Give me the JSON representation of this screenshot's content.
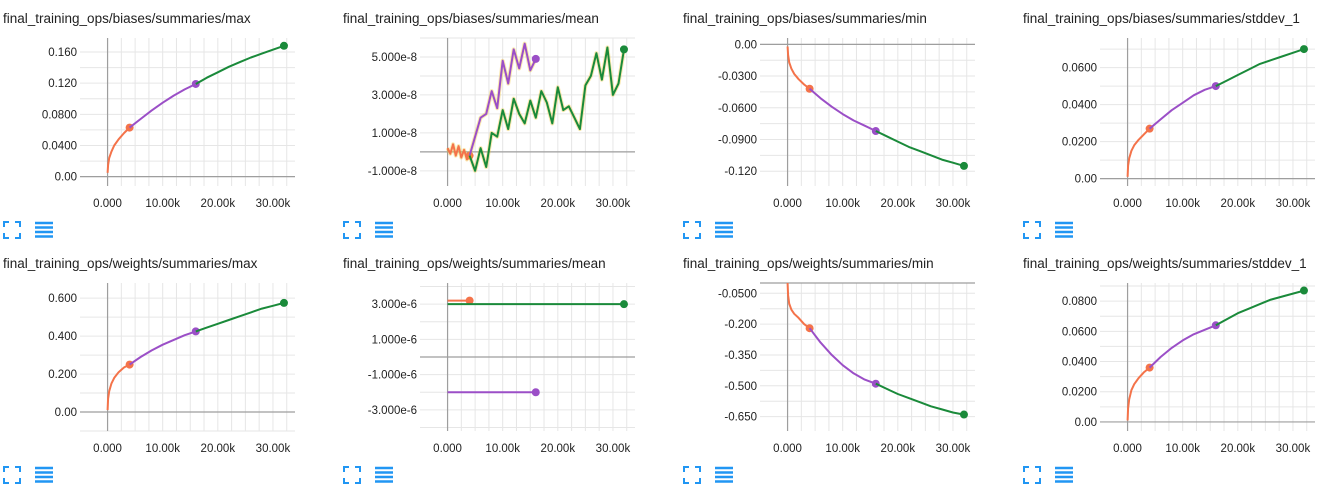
{
  "colors": {
    "orange": "#f4734a",
    "purple": "#9b4fc7",
    "green": "#1a8a3a",
    "yellow": "#f0c020",
    "axis": "#9e9e9e",
    "grid": "#e6e6e6",
    "icon": "#2196f3"
  },
  "icons": {
    "expand": "fullscreen-expand-icon",
    "data": "list-lines-icon"
  },
  "chart_data": [
    {
      "type": "line",
      "title": "final_training_ops/biases/summaries/max",
      "x_ticks": [
        "0.000",
        "10.00k",
        "20.00k",
        "30.00k"
      ],
      "y_ticks": [
        "0.00",
        "0.0400",
        "0.0800",
        "0.120",
        "0.160"
      ],
      "xlim": [
        -5000,
        34000
      ],
      "ylim": [
        -0.012,
        0.178
      ],
      "series": [
        {
          "x": [
            0,
            100,
            300,
            700,
            1200,
            2000,
            3000,
            4000
          ],
          "y": [
            0.005,
            0.015,
            0.024,
            0.032,
            0.04,
            0.048,
            0.056,
            0.063
          ]
        },
        {
          "x": [
            4000,
            6000,
            8000,
            10000,
            12000,
            14000,
            16000
          ],
          "y": [
            0.063,
            0.074,
            0.085,
            0.095,
            0.104,
            0.112,
            0.119
          ]
        },
        {
          "x": [
            16000,
            18000,
            20000,
            22000,
            24000,
            26000,
            28000,
            30000,
            32000
          ],
          "y": [
            0.119,
            0.127,
            0.134,
            0.141,
            0.147,
            0.153,
            0.158,
            0.163,
            0.168
          ]
        }
      ]
    },
    {
      "type": "line",
      "title": "final_training_ops/biases/summaries/mean",
      "x_ticks": [
        "0.000",
        "10.00k",
        "20.00k",
        "30.00k"
      ],
      "y_ticks": [
        "-1.000e-8",
        "1.000e-8",
        "3.000e-8",
        "5.000e-8"
      ],
      "xlim": [
        -5000,
        34000
      ],
      "ylim": [
        -1.8e-08,
        6e-08
      ],
      "series": [
        {
          "x": [
            0,
            500,
            1000,
            1500,
            2000,
            2500,
            3000,
            3500,
            4000
          ],
          "y": [
            2e-09,
            -1e-09,
            4e-09,
            -2e-09,
            3e-09,
            -3e-09,
            1e-09,
            -4e-09,
            -2e-09
          ]
        },
        {
          "x": [
            4000,
            5000,
            6000,
            7000,
            8000,
            9000,
            10000,
            11000,
            12000,
            13000,
            14000,
            15000,
            16000
          ],
          "y": [
            -2e-09,
            8e-09,
            1.8e-08,
            2e-08,
            3.2e-08,
            2.3e-08,
            4.8e-08,
            3.6e-08,
            5.4e-08,
            4.4e-08,
            5.7e-08,
            4.3e-08,
            4.9e-08
          ]
        },
        {
          "x": [
            4000,
            5000,
            6000,
            7000,
            8000,
            9000,
            10000,
            11000,
            12000,
            13000,
            14000,
            15000,
            16000,
            17000,
            18000,
            19000,
            20000,
            21000,
            22000,
            23000,
            24000,
            25000,
            26000,
            27000,
            28000,
            29000,
            30000,
            31000,
            32000
          ],
          "y": [
            -2e-09,
            -1e-08,
            2e-09,
            -8e-09,
            1e-08,
            8e-09,
            2.2e-08,
            1.2e-08,
            2.8e-08,
            2e-08,
            1.5e-08,
            2.7e-08,
            1.8e-08,
            3.2e-08,
            2.6e-08,
            1.5e-08,
            3.4e-08,
            2.2e-08,
            2.4e-08,
            1.8e-08,
            1.2e-08,
            3.5e-08,
            4e-08,
            5.2e-08,
            3.8e-08,
            5.5e-08,
            3e-08,
            3.6e-08,
            5.4e-08
          ]
        }
      ]
    },
    {
      "type": "line",
      "title": "final_training_ops/biases/summaries/min",
      "x_ticks": [
        "0.000",
        "10.00k",
        "20.00k",
        "30.00k"
      ],
      "y_ticks": [
        "0.00",
        "-0.0300",
        "-0.0600",
        "-0.0900",
        "-0.120"
      ],
      "xlim": [
        -5000,
        34000
      ],
      "ylim": [
        -0.134,
        0.006
      ],
      "series": [
        {
          "x": [
            0,
            100,
            300,
            700,
            1200,
            2000,
            3000,
            4000
          ],
          "y": [
            -0.002,
            -0.01,
            -0.017,
            -0.023,
            -0.028,
            -0.033,
            -0.038,
            -0.042
          ]
        },
        {
          "x": [
            4000,
            6000,
            8000,
            10000,
            12000,
            14000,
            16000
          ],
          "y": [
            -0.042,
            -0.051,
            -0.059,
            -0.066,
            -0.072,
            -0.077,
            -0.082
          ]
        },
        {
          "x": [
            16000,
            18000,
            20000,
            22000,
            24000,
            26000,
            28000,
            30000,
            32000
          ],
          "y": [
            -0.082,
            -0.087,
            -0.092,
            -0.097,
            -0.101,
            -0.105,
            -0.109,
            -0.112,
            -0.115
          ]
        }
      ]
    },
    {
      "type": "line",
      "title": "final_training_ops/biases/summaries/stddev_1",
      "x_ticks": [
        "0.000",
        "10.00k",
        "20.00k",
        "30.00k"
      ],
      "y_ticks": [
        "0.00",
        "0.0200",
        "0.0400",
        "0.0600"
      ],
      "xlim": [
        -5000,
        34000
      ],
      "ylim": [
        -0.004,
        0.076
      ],
      "series": [
        {
          "x": [
            0,
            100,
            300,
            700,
            1200,
            2000,
            3000,
            4000
          ],
          "y": [
            0.001,
            0.007,
            0.011,
            0.015,
            0.018,
            0.021,
            0.024,
            0.027
          ]
        },
        {
          "x": [
            4000,
            6000,
            8000,
            10000,
            12000,
            14000,
            16000
          ],
          "y": [
            0.027,
            0.032,
            0.037,
            0.041,
            0.045,
            0.048,
            0.05
          ]
        },
        {
          "x": [
            16000,
            18000,
            20000,
            22000,
            24000,
            26000,
            28000,
            30000,
            32000
          ],
          "y": [
            0.05,
            0.053,
            0.056,
            0.059,
            0.062,
            0.064,
            0.066,
            0.068,
            0.07
          ]
        }
      ]
    },
    {
      "type": "line",
      "title": "final_training_ops/weights/summaries/max",
      "x_ticks": [
        "0.000",
        "10.00k",
        "20.00k",
        "30.00k"
      ],
      "y_ticks": [
        "0.00",
        "0.200",
        "0.400",
        "0.600"
      ],
      "xlim": [
        -5000,
        34000
      ],
      "ylim": [
        -0.1,
        0.68
      ],
      "series": [
        {
          "x": [
            0,
            100,
            300,
            700,
            1200,
            2000,
            3000,
            4000
          ],
          "y": [
            0.01,
            0.07,
            0.11,
            0.15,
            0.18,
            0.21,
            0.235,
            0.25
          ]
        },
        {
          "x": [
            4000,
            6000,
            8000,
            10000,
            12000,
            14000,
            16000
          ],
          "y": [
            0.25,
            0.29,
            0.325,
            0.355,
            0.38,
            0.405,
            0.425
          ]
        },
        {
          "x": [
            16000,
            18000,
            20000,
            22000,
            24000,
            26000,
            28000,
            30000,
            32000
          ],
          "y": [
            0.425,
            0.445,
            0.465,
            0.485,
            0.505,
            0.525,
            0.545,
            0.56,
            0.575
          ]
        }
      ]
    },
    {
      "type": "line",
      "title": "final_training_ops/weights/summaries/mean",
      "x_ticks": [
        "0.000",
        "10.00k",
        "20.00k",
        "30.00k"
      ],
      "y_ticks": [
        "-3.000e-6",
        "-1.000e-6",
        "1.000e-6",
        "3.000e-6"
      ],
      "xlim": [
        -5000,
        34000
      ],
      "ylim": [
        -4.2e-06,
        4.2e-06
      ],
      "series": [
        {
          "x": [
            0,
            500,
            1000,
            1500,
            2000,
            2500,
            3000,
            3500,
            4000
          ],
          "y": [
            3.2e-06,
            3.2e-06,
            3.2e-06,
            3.2e-06,
            3.2e-06,
            3.2e-06,
            3.2e-06,
            3.2e-06,
            3.2e-06
          ]
        },
        {
          "x": [
            0,
            4000,
            8000,
            12000,
            16000
          ],
          "y": [
            -2e-06,
            -2e-06,
            -2e-06,
            -2e-06,
            -2e-06
          ]
        },
        {
          "x": [
            0,
            8000,
            16000,
            24000,
            32000
          ],
          "y": [
            3e-06,
            3e-06,
            3e-06,
            3e-06,
            3e-06
          ]
        }
      ]
    },
    {
      "type": "line",
      "title": "final_training_ops/weights/summaries/min",
      "x_ticks": [
        "0.000",
        "10.00k",
        "20.00k",
        "30.00k"
      ],
      "y_ticks": [
        "-0.0500",
        "-0.200",
        "-0.350",
        "-0.500",
        "-0.650"
      ],
      "xlim": [
        -5000,
        34000
      ],
      "ylim": [
        -0.72,
        0.0
      ],
      "series": [
        {
          "x": [
            0,
            100,
            300,
            700,
            1200,
            2000,
            3000,
            4000
          ],
          "y": [
            -0.0,
            -0.06,
            -0.1,
            -0.13,
            -0.15,
            -0.17,
            -0.2,
            -0.22
          ]
        },
        {
          "x": [
            4000,
            6000,
            8000,
            10000,
            12000,
            14000,
            16000
          ],
          "y": [
            -0.22,
            -0.29,
            -0.35,
            -0.4,
            -0.44,
            -0.47,
            -0.49
          ]
        },
        {
          "x": [
            16000,
            18000,
            20000,
            22000,
            24000,
            26000,
            28000,
            30000,
            32000
          ],
          "y": [
            -0.49,
            -0.515,
            -0.54,
            -0.56,
            -0.58,
            -0.6,
            -0.615,
            -0.63,
            -0.64
          ]
        }
      ]
    },
    {
      "type": "line",
      "title": "final_training_ops/weights/summaries/stddev_1",
      "x_ticks": [
        "0.000",
        "10.00k",
        "20.00k",
        "30.00k"
      ],
      "y_ticks": [
        "0.00",
        "0.0200",
        "0.0400",
        "0.0600",
        "0.0800"
      ],
      "xlim": [
        -5000,
        34000
      ],
      "ylim": [
        -0.006,
        0.092
      ],
      "series": [
        {
          "x": [
            0,
            100,
            300,
            700,
            1200,
            2000,
            3000,
            4000
          ],
          "y": [
            0.001,
            0.009,
            0.015,
            0.021,
            0.025,
            0.029,
            0.033,
            0.036
          ]
        },
        {
          "x": [
            4000,
            6000,
            8000,
            10000,
            12000,
            14000,
            16000
          ],
          "y": [
            0.036,
            0.043,
            0.049,
            0.054,
            0.058,
            0.061,
            0.064
          ]
        },
        {
          "x": [
            16000,
            18000,
            20000,
            22000,
            24000,
            26000,
            28000,
            30000,
            32000
          ],
          "y": [
            0.064,
            0.068,
            0.072,
            0.075,
            0.078,
            0.081,
            0.083,
            0.085,
            0.087
          ]
        }
      ]
    }
  ]
}
